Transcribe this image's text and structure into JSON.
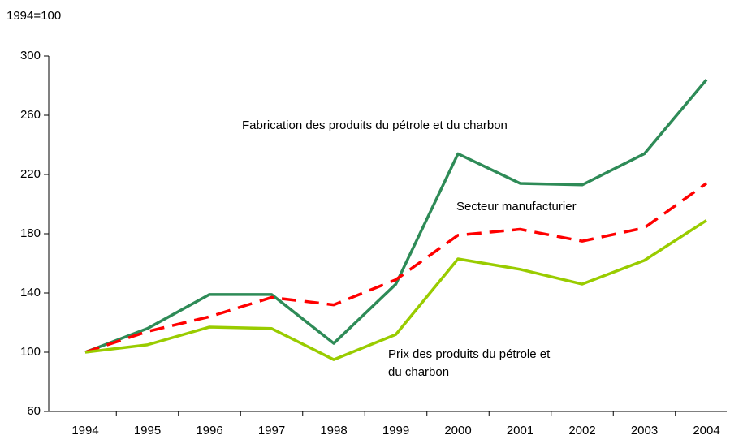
{
  "chart_data": {
    "type": "line",
    "y_unit_label": "1994=100",
    "categories": [
      "1994",
      "1995",
      "1996",
      "1997",
      "1998",
      "1999",
      "2000",
      "2001",
      "2002",
      "2003",
      "2004"
    ],
    "series": [
      {
        "name": "Fabrication des produits du pétrole et du charbon",
        "color": "#2e8b57",
        "dash": false,
        "values": [
          100,
          116,
          139,
          139,
          106,
          146,
          234,
          214,
          213,
          234,
          284
        ]
      },
      {
        "name": "Secteur manufacturier",
        "color": "#ff0000",
        "dash": true,
        "values": [
          100,
          114,
          124,
          137,
          132,
          149,
          179,
          183,
          175,
          184,
          214
        ]
      },
      {
        "name": "Prix des produits du pétrole et du charbon",
        "color": "#99cc00",
        "dash": false,
        "values": [
          100,
          105,
          117,
          116,
          95,
          112,
          163,
          156,
          146,
          162,
          189
        ]
      }
    ],
    "ylim": [
      60,
      300
    ],
    "yticks": [
      60,
      100,
      140,
      180,
      220,
      260,
      300
    ],
    "grid": false
  }
}
